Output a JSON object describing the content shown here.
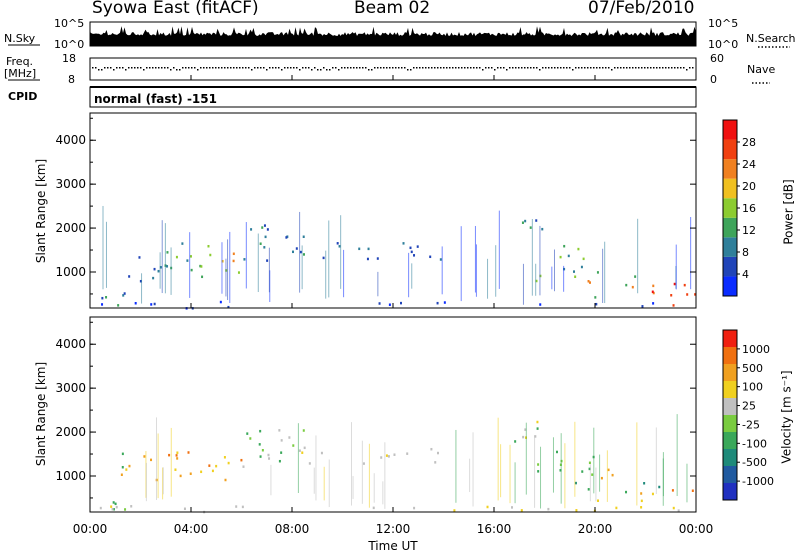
{
  "header": {
    "station": "Syowa East (fitACF)",
    "beam": "Beam 02",
    "date": "07/Feb/2010"
  },
  "summary_panels": {
    "nsky_label": "N.Sky",
    "nsearch_label": "N.Search",
    "freq_label_line1": "Freq.",
    "freq_label_line2": "[MHz]",
    "nave_label": "Nave",
    "cpid_label": "CPID",
    "cpid_text": "normal (fast) -151",
    "nsky_ticks": [
      "10^5",
      "10^0"
    ],
    "nsearch_ticks": [
      "10^5",
      "10^0"
    ],
    "freq_ticks": [
      "18",
      "8"
    ],
    "nave_ticks": [
      "60",
      "0"
    ]
  },
  "colors": {
    "power_scale": [
      "#0a2cff",
      "#2044b8",
      "#2f7f9a",
      "#3ea45a",
      "#8ccc30",
      "#f0c020",
      "#f08020",
      "#f04010",
      "#f01010"
    ],
    "velocity_scale": [
      "#2030c0",
      "#205aa0",
      "#1e8a7a",
      "#3aa85a",
      "#7acc40",
      "#c0c0c0",
      "#f0d020",
      "#f0a020",
      "#f07010",
      "#f02010"
    ]
  },
  "chart_data": [
    {
      "type": "heatmap",
      "name": "power",
      "ylabel": "Slant Range [km]",
      "xlim": [
        0,
        24
      ],
      "ylim": [
        180,
        4620
      ],
      "yticks": [
        "1000",
        "2000",
        "3000",
        "4000"
      ],
      "colorbar_label": "Power [dB]",
      "colorbar_ticks": [
        "4",
        "8",
        "12",
        "16",
        "20",
        "24",
        "28"
      ],
      "colorbar_range": [
        0,
        30
      ]
    },
    {
      "type": "heatmap",
      "name": "velocity",
      "ylabel": "Slant Range [km]",
      "xlim": [
        0,
        24
      ],
      "ylim": [
        180,
        4620
      ],
      "yticks": [
        "1000",
        "2000",
        "3000",
        "4000"
      ],
      "colorbar_label": "Velocity [m s⁻¹]",
      "colorbar_ticks": [
        "1000",
        "500",
        "100",
        "25",
        "-25",
        "-100",
        "-500",
        "-1000"
      ],
      "xlabel": "Time UT",
      "xticks": [
        "00:00",
        "04:00",
        "08:00",
        "12:00",
        "16:00",
        "20:00",
        "00:00"
      ]
    }
  ]
}
